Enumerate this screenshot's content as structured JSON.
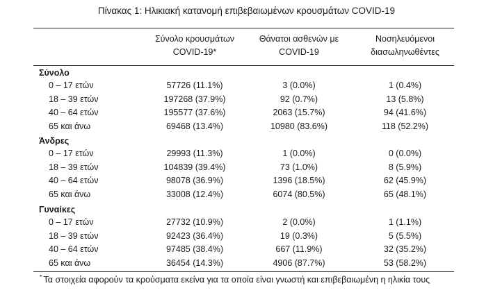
{
  "title": "Πίνακας 1: Ηλικιακή κατανομή επιβεβαιωμένων κρουσμάτων COVID-19",
  "headers": [
    [
      "Σύνολο κρουσμάτων",
      "COVID-19*"
    ],
    [
      "Θάνατοι ασθενών με",
      "COVID-19"
    ],
    [
      "Νοσηλευόμενοι",
      "διασωληνωθέντες"
    ]
  ],
  "groups": [
    {
      "label": "Σύνολο",
      "rows": [
        {
          "age": "0 – 17 ετών",
          "cases": "57726 (11.1%)",
          "deaths": "3 (0.0%)",
          "intubated": "1 (0.4%)"
        },
        {
          "age": "18 – 39 ετών",
          "cases": "197268 (37.9%)",
          "deaths": "92 (0.7%)",
          "intubated": "13 (5.8%)"
        },
        {
          "age": "40 – 64 ετών",
          "cases": "195577 (37.6%)",
          "deaths": "2063 (15.7%)",
          "intubated": "94 (41.6%)"
        },
        {
          "age": "65 και άνω",
          "cases": "69468 (13.4%)",
          "deaths": "10980 (83.6%)",
          "intubated": "118 (52.2%)"
        }
      ]
    },
    {
      "label": "Άνδρες",
      "rows": [
        {
          "age": "0 – 17 ετών",
          "cases": "29993 (11.3%)",
          "deaths": "1 (0.0%)",
          "intubated": "0 (0.0%)"
        },
        {
          "age": "18 – 39 ετών",
          "cases": "104839 (39.4%)",
          "deaths": "73 (1.0%)",
          "intubated": "8 (5.9%)"
        },
        {
          "age": "40 – 64 ετών",
          "cases": "98078 (36.9%)",
          "deaths": "1396 (18.5%)",
          "intubated": "62 (45.9%)"
        },
        {
          "age": "65 και άνω",
          "cases": "33008 (12.4%)",
          "deaths": "6074 (80.5%)",
          "intubated": "65 (48.1%)"
        }
      ]
    },
    {
      "label": "Γυναίκες",
      "rows": [
        {
          "age": "0 – 17 ετών",
          "cases": "27732 (10.9%)",
          "deaths": "2 (0.0%)",
          "intubated": "1 (1.1%)"
        },
        {
          "age": "18 – 39 ετών",
          "cases": "92423 (36.4%)",
          "deaths": "19 (0.3%)",
          "intubated": "5 (5.5%)"
        },
        {
          "age": "40 – 64 ετών",
          "cases": "97485 (38.4%)",
          "deaths": "667 (11.9%)",
          "intubated": "32 (35.2%)"
        },
        {
          "age": "65 και άνω",
          "cases": "36454 (14.3%)",
          "deaths": "4906 (87.7%)",
          "intubated": "53 (58.2%)"
        }
      ]
    }
  ],
  "footnote": {
    "marker": "*",
    "text": "Τα στοιχεία αφορούν τα κρούσματα εκείνα για τα οποία είναι γνωστή και επιβεβαιωμένη η ηλικία τους"
  }
}
